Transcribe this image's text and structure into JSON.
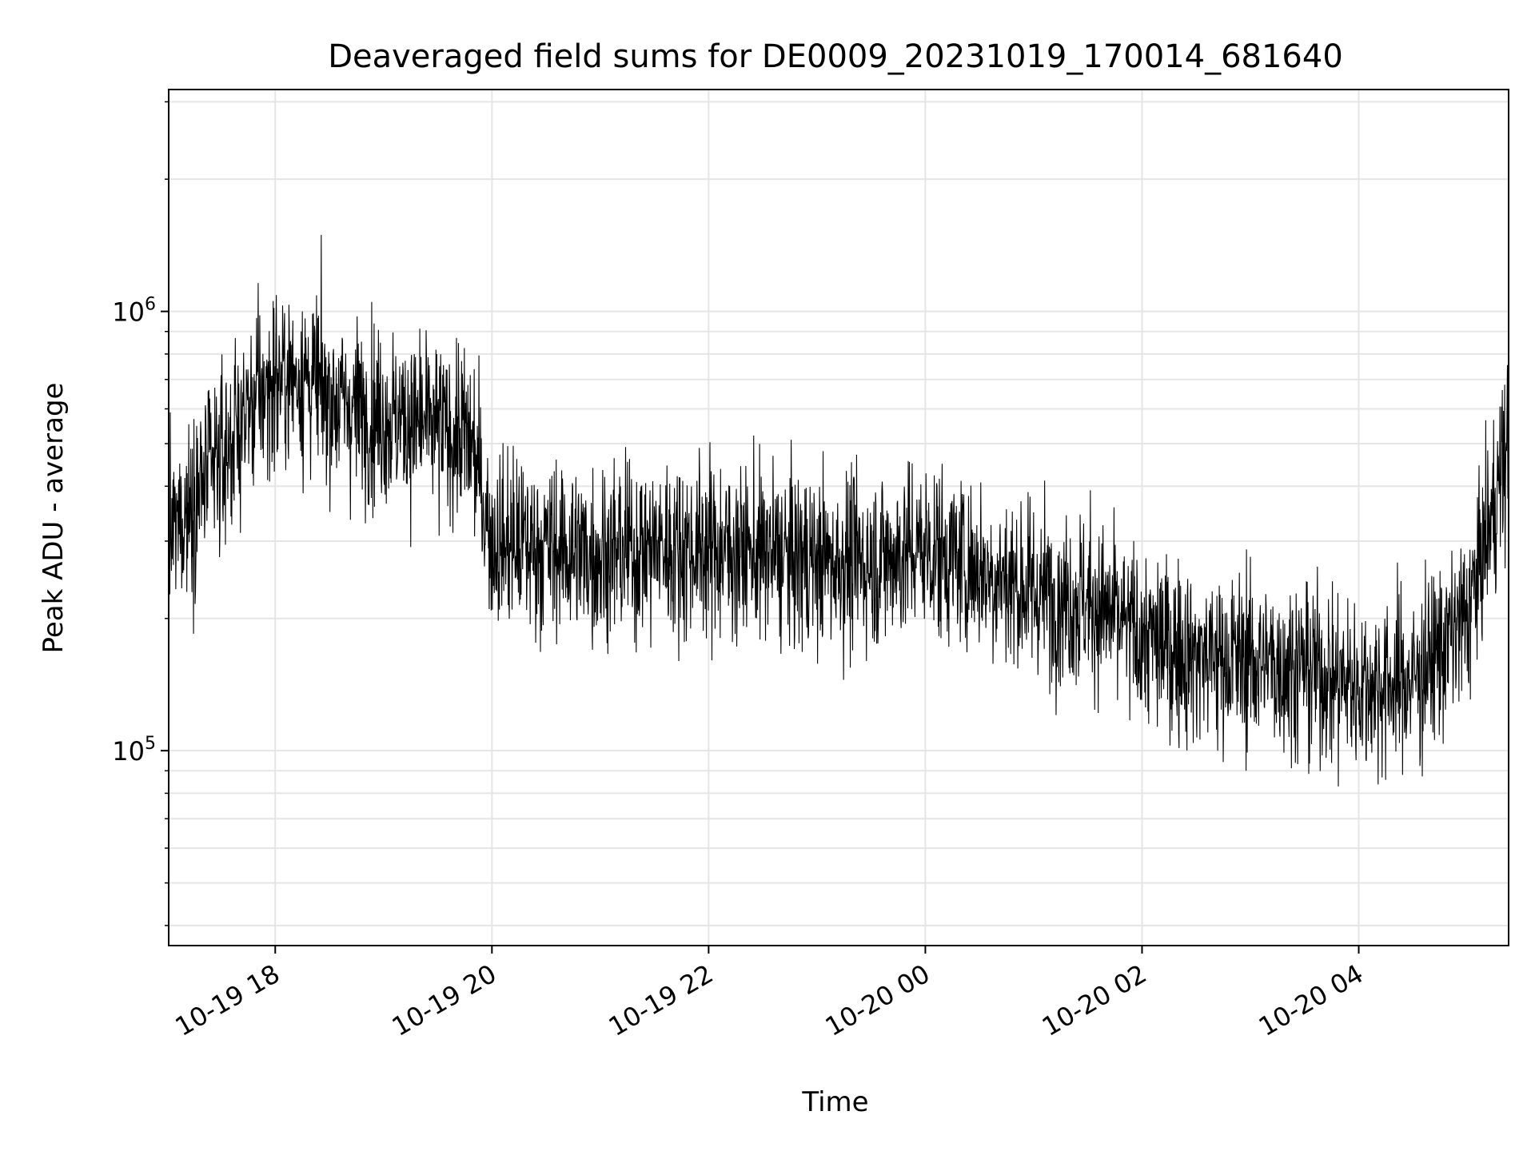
{
  "chart_data": {
    "type": "line",
    "title": "Deaveraged field sums for DE0009_20231019_170014_681640",
    "xlabel": "Time",
    "ylabel": "Peak ADU - average",
    "y_scale": "log",
    "ylim": [
      36000,
      3200000
    ],
    "xlim": [
      "2023-10-19 17:01",
      "2023-10-20 05:23"
    ],
    "x_ticks": [
      "2023-10-19 18:00",
      "2023-10-19 20:00",
      "2023-10-19 22:00",
      "2023-10-20 00:00",
      "2023-10-20 02:00",
      "2023-10-20 04:00"
    ],
    "x_tick_labels": [
      "10-19 18",
      "10-19 20",
      "10-19 22",
      "10-20 00",
      "10-20 02",
      "10-20 04"
    ],
    "y_tick_labels": [
      {
        "base": "10",
        "exp": "5",
        "value": 100000
      },
      {
        "base": "10",
        "exp": "6",
        "value": 1000000
      }
    ],
    "grid": true,
    "line_color": "#000000",
    "grid_color": "#e5e5e5",
    "series": [
      {
        "x": [
          "2023-10-19 17:01",
          "2023-10-19 17:15",
          "2023-10-19 17:30",
          "2023-10-19 17:45",
          "2023-10-19 18:00",
          "2023-10-19 18:15",
          "2023-10-19 18:30",
          "2023-10-19 18:45",
          "2023-10-19 19:00",
          "2023-10-19 19:15",
          "2023-10-19 19:30",
          "2023-10-19 19:45",
          "2023-10-19 19:50",
          "2023-10-19 20:00",
          "2023-10-19 20:30",
          "2023-10-19 21:00",
          "2023-10-19 21:30",
          "2023-10-19 22:00",
          "2023-10-19 22:30",
          "2023-10-19 23:00",
          "2023-10-19 23:30",
          "2023-10-20 00:00",
          "2023-10-20 00:30",
          "2023-10-20 01:00",
          "2023-10-20 01:30",
          "2023-10-20 02:00",
          "2023-10-20 02:30",
          "2023-10-20 03:00",
          "2023-10-20 03:30",
          "2023-10-20 04:00",
          "2023-10-20 04:30",
          "2023-10-20 05:00",
          "2023-10-20 05:23"
        ],
        "values": [
          300000,
          380000,
          460000,
          600000,
          700000,
          720000,
          640000,
          600000,
          580000,
          560000,
          540000,
          520000,
          480000,
          300000,
          290000,
          280000,
          290000,
          290000,
          280000,
          270000,
          270000,
          290000,
          260000,
          230000,
          220000,
          180000,
          165000,
          160000,
          155000,
          140000,
          145000,
          200000,
          500000
        ]
      }
    ]
  }
}
